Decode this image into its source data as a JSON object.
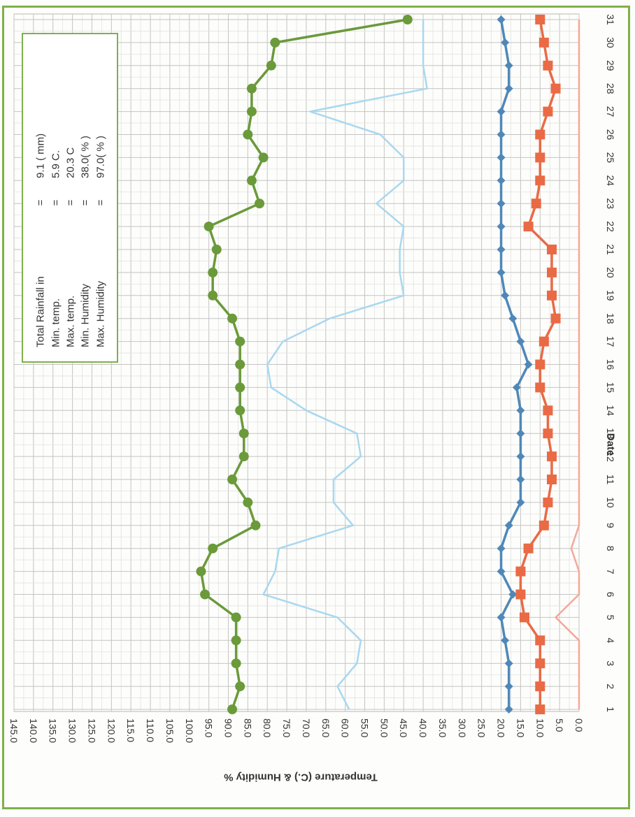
{
  "chart_data": {
    "type": "line",
    "title": "",
    "xlabel": "Date",
    "ylabel": "Temperature (C.) & Humidity %",
    "x": [
      1,
      2,
      3,
      4,
      5,
      6,
      7,
      8,
      9,
      10,
      11,
      12,
      13,
      14,
      15,
      16,
      17,
      18,
      19,
      20,
      21,
      22,
      23,
      24,
      25,
      26,
      27,
      28,
      29,
      30,
      31
    ],
    "ylim": [
      0,
      145
    ],
    "y_ticks": [
      "0.0",
      "5.0",
      "10.0",
      "15.0",
      "20.0",
      "25.0",
      "30.0",
      "35.0",
      "40.0",
      "45.0",
      "50.0",
      "55.0",
      "60.0",
      "65.0",
      "70.0",
      "75.0",
      "80.0",
      "85.0",
      "90.0",
      "95.0",
      "100.0",
      "105.0",
      "110.0",
      "115.0",
      "120.0",
      "125.0",
      "130.0",
      "135.0",
      "140.0",
      "145.0"
    ],
    "grid": true,
    "series": [
      {
        "key": "max_humidity",
        "color": "#6a9a3a",
        "marker": "circle",
        "values": [
          89,
          87,
          88,
          88,
          88,
          96,
          97,
          94,
          83,
          85,
          89,
          86,
          86,
          87,
          87,
          87,
          87,
          89,
          94,
          94,
          93,
          95,
          82,
          84,
          81,
          85,
          84,
          84,
          79,
          78,
          44
        ]
      },
      {
        "key": "min_humidity",
        "color": "#a8d8f0",
        "marker": "none",
        "values": [
          59,
          62,
          57,
          56,
          62,
          81,
          78,
          77,
          58,
          63,
          63,
          56,
          57,
          70,
          79,
          80,
          76,
          64,
          45,
          46,
          46,
          45,
          52,
          45,
          45,
          51,
          69,
          39,
          40,
          40,
          40
        ]
      },
      {
        "key": "max_temp",
        "color": "#4f88b8",
        "marker": "diamond",
        "values": [
          18,
          18,
          18,
          19,
          20,
          17,
          20,
          20,
          18,
          15,
          15,
          15,
          15,
          15,
          16,
          13,
          15,
          17,
          19,
          20,
          20,
          20,
          20,
          20,
          20,
          20,
          20,
          18,
          18,
          19,
          20
        ]
      },
      {
        "key": "min_temp",
        "color": "#e96a45",
        "marker": "square",
        "values": [
          10,
          10,
          10,
          10,
          14,
          15,
          15,
          13,
          9,
          8,
          7,
          7,
          8,
          8,
          10,
          10,
          9,
          6,
          7,
          7,
          7,
          13,
          11,
          10,
          10,
          10,
          8,
          6,
          8,
          9,
          10
        ]
      },
      {
        "key": "rainfall",
        "color": "#f4a898",
        "marker": "none",
        "values": [
          0,
          0,
          0,
          0,
          6,
          0,
          0,
          2,
          0,
          0,
          0,
          0,
          0,
          0,
          0,
          0,
          0,
          0,
          0,
          0,
          0,
          0,
          0,
          0,
          0,
          0,
          0,
          0,
          0,
          0,
          0
        ]
      }
    ],
    "summary_box": {
      "rows": [
        {
          "label": "Total Rainfall in",
          "sep": "=",
          "value": "9.1 ( mm)"
        },
        {
          "label": "Min. temp.",
          "sep": "=",
          "value": "5.9 C."
        },
        {
          "label": "Max. temp.",
          "sep": "=",
          "value": "20.3 C"
        },
        {
          "label": "Min. Humidity",
          "sep": "=",
          "value": "38.0( % )"
        },
        {
          "label": "Max. Humidity",
          "sep": "=",
          "value": "97.0( % )"
        }
      ],
      "border_color": "#7fb04a"
    },
    "orientation": "rotated-90-clockwise"
  }
}
